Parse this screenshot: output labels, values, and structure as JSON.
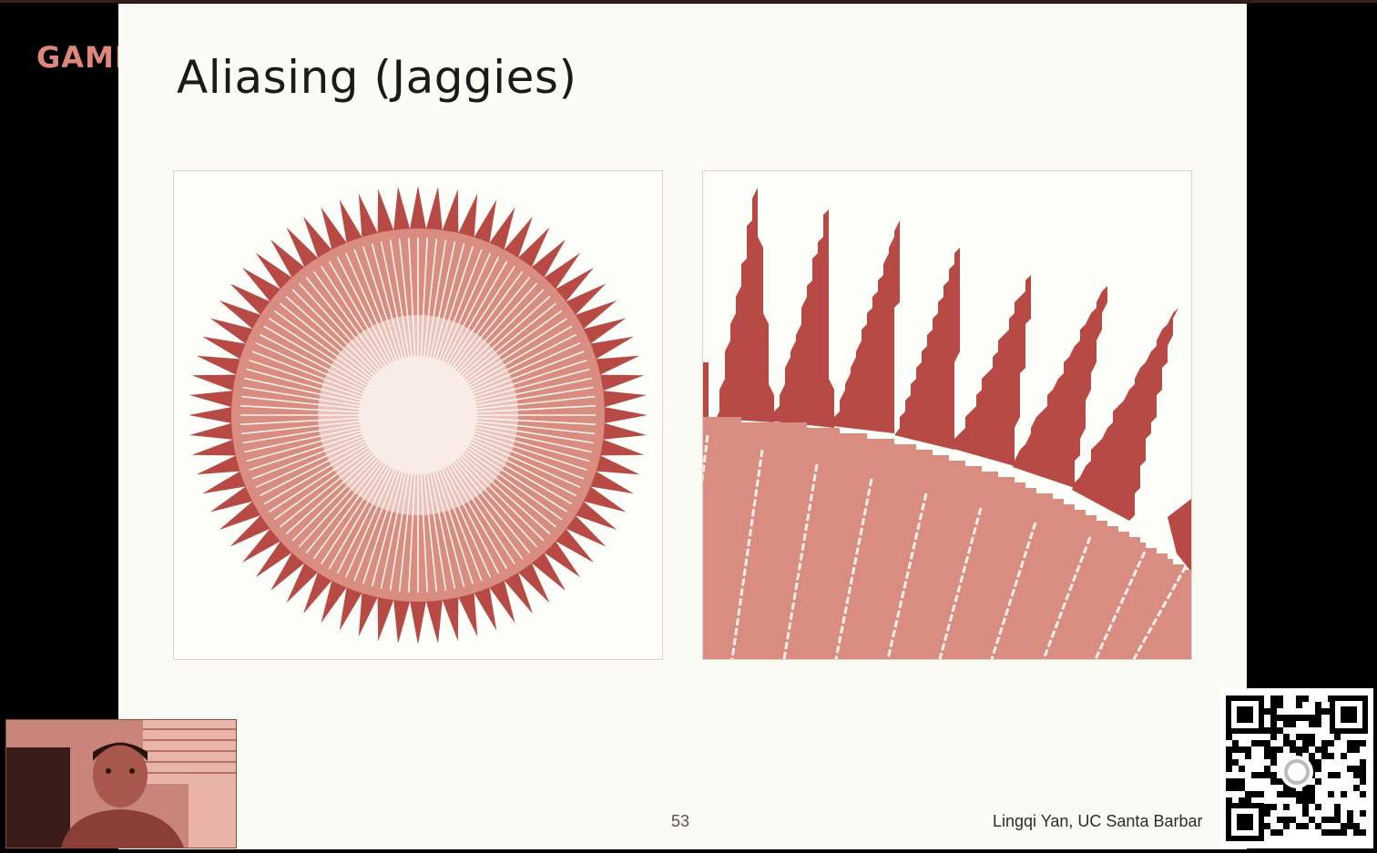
{
  "brand": {
    "text": "GAME"
  },
  "slide": {
    "title": "Aliasing (Jaggies)",
    "page_number": "53",
    "author": "Lingqi Yan, UC Santa Barbar"
  },
  "colors": {
    "slide_bg": "#fbfbf6",
    "spike_red": "#b84a45",
    "disc_pink": "#d98c80",
    "light_pink": "#ecc3ba",
    "brand_salmon": "#e0877c"
  },
  "figures": {
    "left": {
      "description_icon": "starburst-antialias-example",
      "spike_count": 72
    },
    "right": {
      "description_icon": "starburst-zoomed-jaggies"
    }
  },
  "overlays": {
    "webcam_icon": "presenter-webcam-icon",
    "qr_icon": "qr-code-icon"
  }
}
